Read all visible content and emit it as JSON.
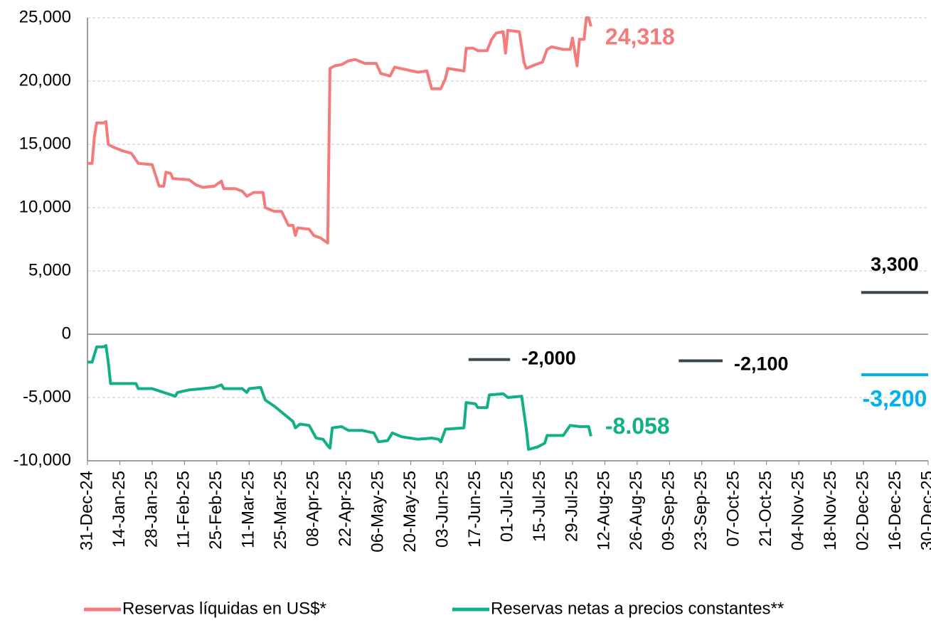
{
  "chart_data": {
    "type": "line",
    "xlim": [
      "2024-12-31",
      "2025-12-30"
    ],
    "xticks": [
      {
        "value": "2024-12-31",
        "label": "31-Dec-24"
      },
      {
        "value": "2025-01-14",
        "label": "14-Jan-25"
      },
      {
        "value": "2025-01-28",
        "label": "28-Jan-25"
      },
      {
        "value": "2025-02-11",
        "label": "11-Feb-25"
      },
      {
        "value": "2025-02-25",
        "label": "25-Feb-25"
      },
      {
        "value": "2025-03-11",
        "label": "11-Mar-25"
      },
      {
        "value": "2025-03-25",
        "label": "25-Mar-25"
      },
      {
        "value": "2025-04-08",
        "label": "08-Apr-25"
      },
      {
        "value": "2025-04-22",
        "label": "22-Apr-25"
      },
      {
        "value": "2025-05-06",
        "label": "06-May-25"
      },
      {
        "value": "2025-05-20",
        "label": "20-May-25"
      },
      {
        "value": "2025-06-03",
        "label": "03-Jun-25"
      },
      {
        "value": "2025-06-17",
        "label": "17-Jun-25"
      },
      {
        "value": "2025-07-01",
        "label": "01-Jul-25"
      },
      {
        "value": "2025-07-15",
        "label": "15-Jul-25"
      },
      {
        "value": "2025-07-29",
        "label": "29-Jul-25"
      },
      {
        "value": "2025-08-12",
        "label": "12-Aug-25"
      },
      {
        "value": "2025-08-26",
        "label": "26-Aug-25"
      },
      {
        "value": "2025-09-09",
        "label": "09-Sep-25"
      },
      {
        "value": "2025-09-23",
        "label": "23-Sep-25"
      },
      {
        "value": "2025-10-07",
        "label": "07-Oct-25"
      },
      {
        "value": "2025-10-21",
        "label": "21-Oct-25"
      },
      {
        "value": "2025-11-04",
        "label": "04-Nov-25"
      },
      {
        "value": "2025-11-18",
        "label": "18-Nov-25"
      },
      {
        "value": "2025-12-02",
        "label": "02-Dec-25"
      },
      {
        "value": "2025-12-16",
        "label": "16-Dec-25"
      },
      {
        "value": "2025-12-30",
        "label": "30-Dec-25"
      }
    ],
    "ylim": [
      -10000,
      25000
    ],
    "yticks": [
      {
        "value": 25000,
        "label": "25,000"
      },
      {
        "value": 20000,
        "label": "20,000"
      },
      {
        "value": 15000,
        "label": "15,000"
      },
      {
        "value": 10000,
        "label": "10,000"
      },
      {
        "value": 5000,
        "label": "5,000"
      },
      0,
      {
        "value": -5000,
        "label": "-5,000"
      },
      {
        "value": -10000,
        "label": "-10,000"
      }
    ],
    "grid": true,
    "series": [
      {
        "name": "Reservas líquidas en US$*",
        "color": "#f47a7b",
        "x": [
          "2024-12-31",
          "2025-01-02",
          "2025-01-03",
          "2025-01-04",
          "2025-01-07",
          "2025-01-08",
          "2025-01-09",
          "2025-01-11",
          "2025-01-15",
          "2025-01-19",
          "2025-01-22",
          "2025-01-28",
          "2025-01-31",
          "2025-02-02",
          "2025-02-03",
          "2025-02-05",
          "2025-02-06",
          "2025-02-13",
          "2025-02-16",
          "2025-02-19",
          "2025-02-24",
          "2025-02-27",
          "2025-02-28",
          "2025-03-05",
          "2025-03-08",
          "2025-03-10",
          "2025-03-13",
          "2025-03-17",
          "2025-03-18",
          "2025-03-22",
          "2025-03-25",
          "2025-03-28",
          "2025-03-30",
          "2025-03-31",
          "2025-04-01",
          "2025-04-06",
          "2025-04-08",
          "2025-04-11",
          "2025-04-14",
          "2025-04-15",
          "2025-04-17",
          "2025-04-20",
          "2025-04-23",
          "2025-04-26",
          "2025-04-30",
          "2025-05-05",
          "2025-05-07",
          "2025-05-11",
          "2025-05-13",
          "2025-05-18",
          "2025-05-23",
          "2025-05-27",
          "2025-05-29",
          "2025-06-02",
          "2025-06-04",
          "2025-06-05",
          "2025-06-12",
          "2025-06-13",
          "2025-06-16",
          "2025-06-18",
          "2025-06-22",
          "2025-06-24",
          "2025-06-26",
          "2025-06-29",
          "2025-06-30",
          "2025-07-01",
          "2025-07-06",
          "2025-07-08",
          "2025-07-09",
          "2025-07-13",
          "2025-07-16",
          "2025-07-18",
          "2025-07-20",
          "2025-07-25",
          "2025-07-28",
          "2025-07-29",
          "2025-07-31",
          "2025-08-01",
          "2025-08-03",
          "2025-08-04",
          "2025-08-05",
          "2025-08-06"
        ],
        "values": [
          13500,
          13500,
          15600,
          16700,
          16700,
          16800,
          15000,
          14800,
          14500,
          14300,
          13500,
          13400,
          11700,
          11700,
          12800,
          12700,
          12300,
          12200,
          11800,
          11600,
          11700,
          12100,
          11500,
          11500,
          11300,
          10900,
          11200,
          11200,
          10000,
          9700,
          9700,
          8600,
          8600,
          7800,
          8400,
          8300,
          7800,
          7600,
          7200,
          21000,
          21200,
          21300,
          21600,
          21700,
          21400,
          21400,
          20600,
          20400,
          21100,
          20900,
          20700,
          20800,
          19400,
          19400,
          20200,
          21000,
          20800,
          22600,
          22600,
          22400,
          22400,
          23300,
          23800,
          23900,
          22200,
          24000,
          23900,
          21500,
          21000,
          21300,
          21500,
          22500,
          22700,
          22500,
          22500,
          23400,
          21200,
          23300,
          23300,
          25000,
          25000,
          24318
        ],
        "last_label": "24,318"
      },
      {
        "name": "Reservas netas a precios constantes**",
        "color": "#12b086",
        "x": [
          "2024-12-31",
          "2025-01-02",
          "2025-01-04",
          "2025-01-07",
          "2025-01-08",
          "2025-01-09",
          "2025-01-10",
          "2025-01-15",
          "2025-01-21",
          "2025-01-22",
          "2025-01-28",
          "2025-02-07",
          "2025-02-08",
          "2025-02-13",
          "2025-02-19",
          "2025-02-24",
          "2025-02-27",
          "2025-02-28",
          "2025-03-08",
          "2025-03-10",
          "2025-03-11",
          "2025-03-16",
          "2025-03-18",
          "2025-03-22",
          "2025-03-26",
          "2025-03-30",
          "2025-03-31",
          "2025-04-02",
          "2025-04-06",
          "2025-04-09",
          "2025-04-12",
          "2025-04-14",
          "2025-04-15",
          "2025-04-16",
          "2025-04-20",
          "2025-04-23",
          "2025-04-29",
          "2025-05-04",
          "2025-05-06",
          "2025-05-10",
          "2025-05-12",
          "2025-05-16",
          "2025-05-23",
          "2025-05-29",
          "2025-06-01",
          "2025-06-02",
          "2025-06-04",
          "2025-06-12",
          "2025-06-13",
          "2025-06-17",
          "2025-06-18",
          "2025-06-22",
          "2025-06-23",
          "2025-06-29",
          "2025-07-01",
          "2025-07-07",
          "2025-07-09",
          "2025-07-10",
          "2025-07-14",
          "2025-07-17",
          "2025-07-18",
          "2025-07-25",
          "2025-07-28",
          "2025-08-01",
          "2025-08-05",
          "2025-08-06"
        ],
        "values": [
          -2200,
          -2200,
          -1000,
          -1000,
          -900,
          -2200,
          -3900,
          -3900,
          -3900,
          -4300,
          -4300,
          -4900,
          -4600,
          -4400,
          -4300,
          -4200,
          -4000,
          -4300,
          -4300,
          -4600,
          -4300,
          -4200,
          -5200,
          -5700,
          -6300,
          -6900,
          -7400,
          -7100,
          -7200,
          -8200,
          -8300,
          -8800,
          -9000,
          -7400,
          -7300,
          -7600,
          -7600,
          -7800,
          -8500,
          -8400,
          -7800,
          -8100,
          -8300,
          -8200,
          -8300,
          -8500,
          -7500,
          -7400,
          -5400,
          -5500,
          -5800,
          -5800,
          -4800,
          -4700,
          -5000,
          -4900,
          -7500,
          -9100,
          -8900,
          -8600,
          -8000,
          -8000,
          -7200,
          -7300,
          -7300,
          -8058
        ],
        "last_label": "-8.058"
      }
    ],
    "targets": [
      {
        "value": -2000,
        "label": "-2,000",
        "color": "#3a474f",
        "start": "2025-06-14",
        "end": "2025-07-02"
      },
      {
        "value": -2100,
        "label": "-2,100",
        "color": "#3a474f",
        "start": "2025-09-13",
        "end": "2025-10-02"
      },
      {
        "value": 3300,
        "label": "3,300",
        "color": "#3a474f",
        "start": "2025-12-01",
        "end": "2025-12-30"
      },
      {
        "value": -3200,
        "label": "-3,200",
        "color": "#00b0f0",
        "start": "2025-12-01",
        "end": "2025-12-30"
      }
    ]
  }
}
